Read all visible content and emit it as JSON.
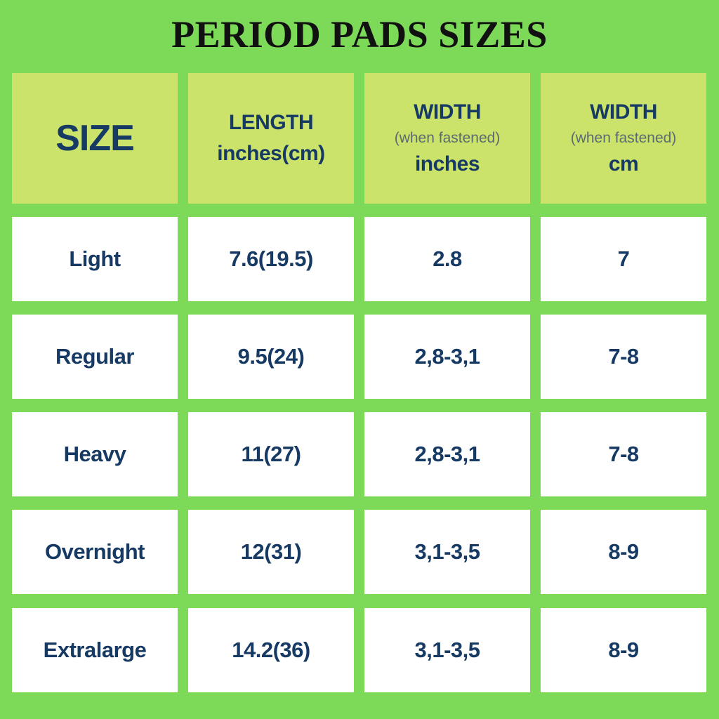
{
  "header": {
    "title": "PERIOD PADS SIZES"
  },
  "table": {
    "columns": [
      [
        "SIZE"
      ],
      [
        "LENGTH",
        "inches(cm)"
      ],
      [
        "WIDTH",
        "(when fastened)",
        "inches"
      ],
      [
        "WIDTH",
        "(when fastened)",
        "cm"
      ]
    ],
    "rows": [
      [
        "Light",
        "7.6(19.5)",
        "2.8",
        "7"
      ],
      [
        "Regular",
        "9.5(24)",
        "2,8-3,1",
        "7-8"
      ],
      [
        "Heavy",
        "11(27)",
        "2,8-3,1",
        "7-8"
      ],
      [
        "Overnight",
        "12(31)",
        "3,1-3,5",
        "8-9"
      ],
      [
        "Extralarge",
        "14.2(36)",
        "3,1-3,5",
        "8-9"
      ]
    ]
  }
}
